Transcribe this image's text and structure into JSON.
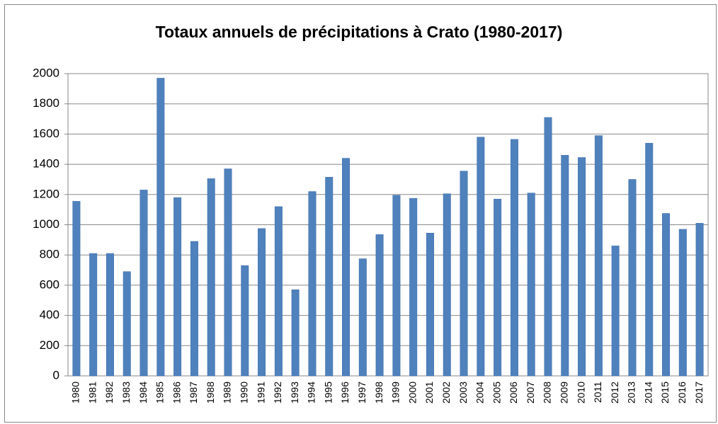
{
  "chart_data": {
    "type": "bar",
    "title": "Totaux annuels de précipitations à Crato (1980-2017)",
    "categories": [
      "1980",
      "1981",
      "1982",
      "1983",
      "1984",
      "1985",
      "1986",
      "1987",
      "1988",
      "1989",
      "1990",
      "1991",
      "1992",
      "1993",
      "1994",
      "1995",
      "1996",
      "1997",
      "1998",
      "1999",
      "2000",
      "2001",
      "2002",
      "2003",
      "2004",
      "2005",
      "2006",
      "2007",
      "2008",
      "2009",
      "2010",
      "2011",
      "2012",
      "2013",
      "2014",
      "2015",
      "2016",
      "2017"
    ],
    "values": [
      1155,
      810,
      810,
      690,
      1230,
      1970,
      1180,
      890,
      1305,
      1370,
      730,
      975,
      1120,
      570,
      1220,
      1315,
      1440,
      775,
      935,
      1195,
      1175,
      945,
      1205,
      1355,
      1580,
      1170,
      1565,
      1210,
      1710,
      1460,
      1445,
      1590,
      860,
      1300,
      1540,
      1075,
      970,
      1010
    ],
    "color": "#4f81bd",
    "ylim": [
      0,
      2000
    ],
    "yticks": [
      0,
      200,
      400,
      600,
      800,
      1000,
      1200,
      1400,
      1600,
      1800,
      2000
    ],
    "grid": true
  }
}
